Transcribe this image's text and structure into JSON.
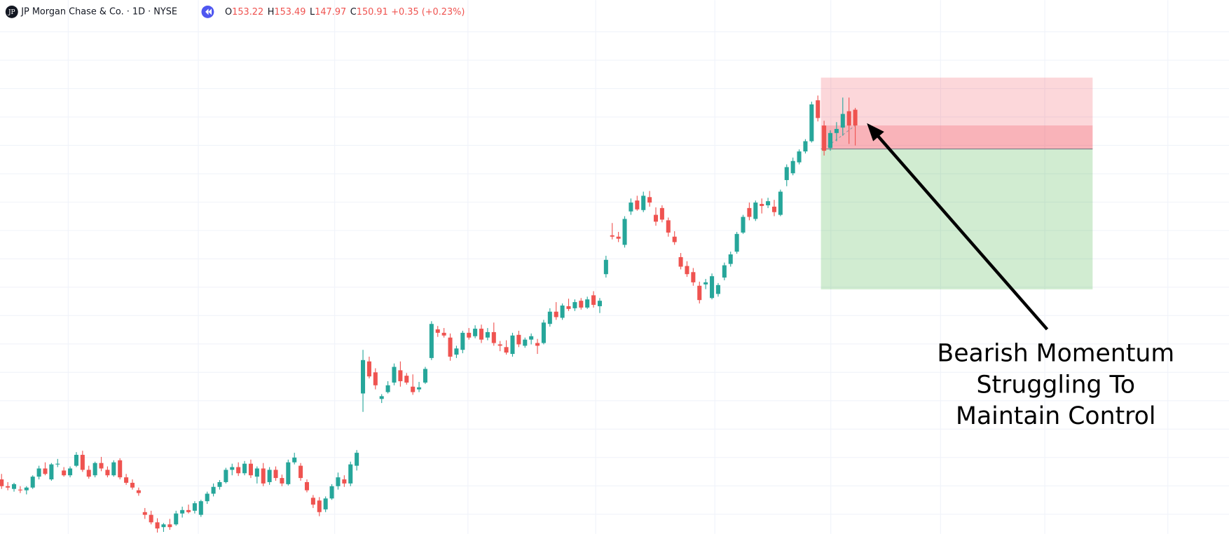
{
  "header": {
    "logo": "JP",
    "title": "JP Morgan Chase & Co. · 1D · NYSE",
    "ohlc": [
      {
        "label": "O",
        "value": 153.22
      },
      {
        "label": "H",
        "value": 153.49
      },
      {
        "label": "L",
        "value": 147.97
      },
      {
        "label": "C",
        "value": 150.91
      }
    ],
    "change": "+0.35 (+0.23%)"
  },
  "chart_data": {
    "type": "candlestick",
    "up_color": "#26a69a",
    "down_color": "#ef5350",
    "ylim": [
      91,
      169.3
    ],
    "ohlc": [
      [
        99.0,
        99.8,
        97.6,
        98.0
      ],
      [
        98.0,
        98.6,
        97.4,
        97.8
      ],
      [
        97.6,
        98.5,
        97.2,
        98.3
      ],
      [
        97.5,
        98.0,
        97.0,
        97.4
      ],
      [
        97.4,
        98.0,
        96.8,
        97.8
      ],
      [
        97.8,
        99.6,
        97.6,
        99.4
      ],
      [
        99.4,
        101.0,
        99.0,
        100.6
      ],
      [
        100.6,
        101.5,
        99.6,
        99.8
      ],
      [
        99.0,
        101.4,
        98.8,
        101.2
      ],
      [
        101.2,
        102.0,
        100.8,
        101.3
      ],
      [
        100.3,
        100.8,
        99.4,
        99.6
      ],
      [
        99.6,
        100.9,
        99.3,
        100.6
      ],
      [
        101.0,
        103.0,
        100.8,
        102.6
      ],
      [
        102.6,
        103.2,
        100.1,
        100.4
      ],
      [
        100.4,
        101.0,
        99.1,
        99.4
      ],
      [
        99.6,
        101.6,
        99.3,
        101.4
      ],
      [
        101.4,
        102.3,
        100.2,
        100.6
      ],
      [
        100.4,
        100.9,
        99.3,
        99.6
      ],
      [
        99.6,
        101.8,
        99.4,
        101.5
      ],
      [
        101.8,
        102.1,
        99.0,
        99.3
      ],
      [
        99.3,
        99.8,
        98.2,
        98.5
      ],
      [
        98.5,
        99.0,
        97.5,
        97.8
      ],
      [
        97.4,
        97.8,
        96.6,
        97.0
      ],
      [
        94.2,
        94.8,
        93.2,
        93.8
      ],
      [
        93.8,
        94.4,
        92.4,
        92.7
      ],
      [
        92.7,
        93.3,
        91.2,
        91.8
      ],
      [
        92.0,
        92.6,
        91.3,
        92.4
      ],
      [
        92.4,
        93.2,
        91.6,
        92.0
      ],
      [
        92.4,
        94.4,
        92.2,
        94.0
      ],
      [
        94.0,
        95.0,
        93.4,
        94.5
      ],
      [
        94.5,
        95.3,
        94.0,
        94.2
      ],
      [
        94.4,
        95.8,
        94.0,
        95.5
      ],
      [
        93.8,
        96.0,
        93.5,
        95.8
      ],
      [
        95.8,
        97.2,
        95.4,
        96.9
      ],
      [
        96.9,
        98.4,
        96.5,
        97.9
      ],
      [
        97.9,
        98.9,
        97.5,
        98.6
      ],
      [
        98.6,
        100.7,
        98.4,
        100.4
      ],
      [
        100.4,
        101.3,
        99.6,
        100.8
      ],
      [
        100.8,
        101.5,
        99.5,
        99.9
      ],
      [
        99.9,
        101.7,
        99.6,
        101.3
      ],
      [
        101.3,
        101.9,
        99.2,
        99.6
      ],
      [
        99.4,
        100.9,
        98.4,
        100.6
      ],
      [
        100.6,
        101.4,
        98.0,
        98.4
      ],
      [
        98.6,
        100.8,
        98.2,
        100.4
      ],
      [
        100.4,
        100.9,
        98.8,
        99.2
      ],
      [
        99.2,
        99.7,
        98.0,
        98.4
      ],
      [
        98.3,
        101.9,
        98.1,
        101.5
      ],
      [
        101.5,
        102.9,
        101.2,
        102.2
      ],
      [
        101.0,
        101.4,
        98.8,
        99.2
      ],
      [
        98.6,
        99.0,
        97.1,
        97.4
      ],
      [
        96.3,
        96.7,
        94.8,
        95.3
      ],
      [
        95.9,
        96.4,
        93.6,
        94.2
      ],
      [
        94.6,
        96.5,
        94.2,
        96.2
      ],
      [
        96.2,
        98.3,
        96.0,
        98.0
      ],
      [
        98.0,
        100.0,
        97.5,
        99.3
      ],
      [
        99.0,
        99.6,
        97.9,
        98.4
      ],
      [
        98.4,
        101.6,
        98.0,
        101.2
      ],
      [
        101.0,
        103.3,
        100.3,
        102.9
      ],
      [
        111.6,
        118.0,
        108.9,
        116.5
      ],
      [
        116.3,
        117.0,
        113.8,
        114.1
      ],
      [
        114.7,
        115.3,
        112.2,
        112.8
      ],
      [
        110.8,
        111.5,
        110.2,
        111.2
      ],
      [
        111.8,
        113.4,
        111.6,
        112.8
      ],
      [
        113.2,
        116.0,
        112.8,
        115.5
      ],
      [
        115.0,
        116.3,
        112.6,
        113.4
      ],
      [
        114.2,
        114.6,
        112.9,
        113.2
      ],
      [
        112.6,
        114.4,
        111.4,
        111.8
      ],
      [
        112.2,
        113.3,
        111.8,
        112.5
      ],
      [
        113.2,
        115.5,
        113.0,
        115.2
      ],
      [
        116.8,
        122.2,
        116.5,
        121.8
      ],
      [
        121.0,
        121.5,
        119.9,
        120.5
      ],
      [
        120.5,
        121.2,
        119.8,
        120.1
      ],
      [
        119.8,
        120.4,
        116.4,
        117.0
      ],
      [
        117.3,
        118.6,
        116.8,
        118.2
      ],
      [
        118.0,
        120.8,
        117.5,
        120.5
      ],
      [
        120.5,
        121.2,
        119.5,
        119.8
      ],
      [
        120.0,
        121.6,
        119.7,
        121.1
      ],
      [
        121.1,
        121.7,
        119.0,
        119.5
      ],
      [
        119.8,
        121.2,
        119.4,
        120.6
      ],
      [
        120.6,
        122.0,
        118.6,
        119.0
      ],
      [
        118.8,
        119.3,
        117.8,
        118.6
      ],
      [
        118.4,
        119.4,
        117.3,
        117.6
      ],
      [
        117.4,
        120.5,
        117.0,
        120.1
      ],
      [
        120.2,
        120.8,
        118.4,
        118.8
      ],
      [
        118.6,
        119.8,
        118.3,
        119.5
      ],
      [
        119.5,
        120.4,
        118.8,
        120.0
      ],
      [
        119.0,
        119.6,
        117.4,
        118.6
      ],
      [
        119.0,
        122.4,
        118.8,
        122.0
      ],
      [
        121.8,
        124.1,
        121.4,
        123.6
      ],
      [
        123.6,
        125.0,
        122.4,
        122.8
      ],
      [
        122.7,
        124.8,
        122.4,
        124.5
      ],
      [
        124.4,
        125.5,
        123.7,
        124.0
      ],
      [
        124.1,
        125.4,
        123.7,
        125.0
      ],
      [
        125.2,
        125.6,
        123.9,
        124.2
      ],
      [
        124.2,
        125.8,
        124.0,
        125.4
      ],
      [
        126.0,
        126.6,
        124.2,
        124.6
      ],
      [
        124.4,
        125.6,
        123.4,
        125.2
      ],
      [
        129.1,
        131.8,
        128.6,
        131.2
      ],
      [
        134.8,
        136.6,
        134.2,
        134.6
      ],
      [
        134.6,
        135.3,
        133.8,
        134.3
      ],
      [
        133.4,
        137.6,
        133.0,
        137.2
      ],
      [
        138.3,
        140.2,
        137.8,
        139.6
      ],
      [
        139.9,
        140.6,
        138.4,
        138.6
      ],
      [
        138.5,
        141.2,
        138.2,
        140.6
      ],
      [
        140.4,
        141.3,
        139.0,
        139.6
      ],
      [
        137.8,
        138.9,
        136.2,
        136.8
      ],
      [
        138.8,
        139.2,
        136.7,
        137.1
      ],
      [
        137.0,
        137.4,
        134.6,
        135.2
      ],
      [
        134.6,
        135.4,
        133.4,
        133.8
      ],
      [
        131.6,
        132.2,
        129.8,
        130.2
      ],
      [
        130.3,
        131.0,
        128.7,
        129.1
      ],
      [
        129.4,
        130.0,
        127.4,
        127.9
      ],
      [
        127.4,
        128.0,
        124.8,
        125.3
      ],
      [
        127.6,
        128.4,
        126.9,
        127.9
      ],
      [
        125.6,
        129.2,
        125.4,
        128.8
      ],
      [
        126.2,
        127.8,
        125.8,
        127.5
      ],
      [
        128.6,
        130.8,
        128.2,
        130.4
      ],
      [
        130.6,
        132.4,
        130.2,
        132.0
      ],
      [
        132.4,
        135.3,
        132.1,
        135.0
      ],
      [
        135.2,
        137.8,
        135.0,
        137.5
      ],
      [
        138.8,
        139.6,
        137.0,
        137.5
      ],
      [
        137.2,
        139.9,
        136.9,
        139.6
      ],
      [
        139.4,
        140.2,
        138.0,
        139.1
      ],
      [
        139.2,
        140.3,
        138.8,
        139.8
      ],
      [
        139.0,
        140.0,
        137.6,
        138.2
      ],
      [
        137.8,
        141.5,
        137.6,
        141.2
      ],
      [
        142.9,
        145.2,
        142.0,
        144.8
      ],
      [
        143.9,
        146.2,
        143.6,
        145.7
      ],
      [
        145.5,
        147.4,
        145.2,
        147.1
      ],
      [
        147.1,
        148.9,
        146.8,
        148.6
      ],
      [
        148.6,
        154.4,
        148.4,
        154.0
      ],
      [
        154.6,
        155.3,
        151.5,
        152.0
      ],
      [
        150.9,
        151.6,
        146.5,
        147.2
      ],
      [
        147.6,
        150.2,
        147.2,
        149.8
      ],
      [
        149.8,
        151.4,
        148.6,
        150.4
      ],
      [
        150.6,
        155.0,
        149.4,
        152.6
      ],
      [
        153.0,
        155.0,
        148.2,
        150.9
      ],
      [
        153.22,
        153.49,
        147.97,
        150.91
      ]
    ],
    "position": {
      "stop": 157.93,
      "entry": 147.46,
      "target": 126.87
    },
    "annotation": [
      "Bearish Momentum",
      "Struggling To",
      "Maintain Control"
    ]
  }
}
